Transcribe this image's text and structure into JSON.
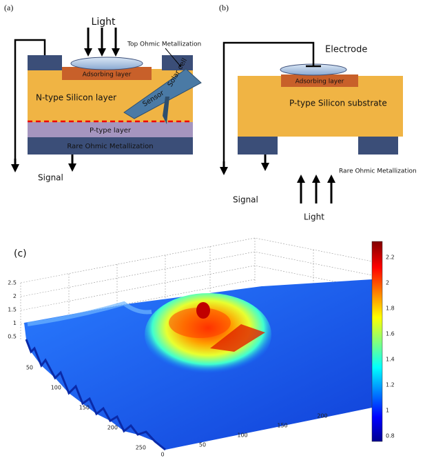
{
  "panels": {
    "a": {
      "label": "(a)",
      "light": "Light",
      "top_metal": "Top Ohmic Metallization",
      "adsorbing": "Adsorbing layer",
      "n_layer": "N-type Silicon layer",
      "sensor": "Sensor",
      "solar_cell": "Solar cell",
      "p_layer": "P-type layer",
      "rare_metal": "Rare Ohmic Metallization",
      "signal": "Signal"
    },
    "b": {
      "label": "(b)",
      "electrode": "Electrode",
      "adsorbing": "Adsorbing layer",
      "substrate": "P-type Silicon substrate",
      "rare_metal": "Rare Ohmic Metallization",
      "signal": "Signal",
      "light": "Light"
    },
    "c": {
      "label": "(c)",
      "z_ticks": [
        0.5,
        1,
        1.5,
        2,
        2.5
      ],
      "x_ticks": [
        0,
        50,
        100,
        150,
        200
      ],
      "y_ticks": [
        50,
        100,
        150,
        200,
        250
      ],
      "colorbar_ticks": [
        0.8,
        1,
        1.2,
        1.4,
        1.6,
        1.8,
        2,
        2.2
      ]
    }
  }
}
